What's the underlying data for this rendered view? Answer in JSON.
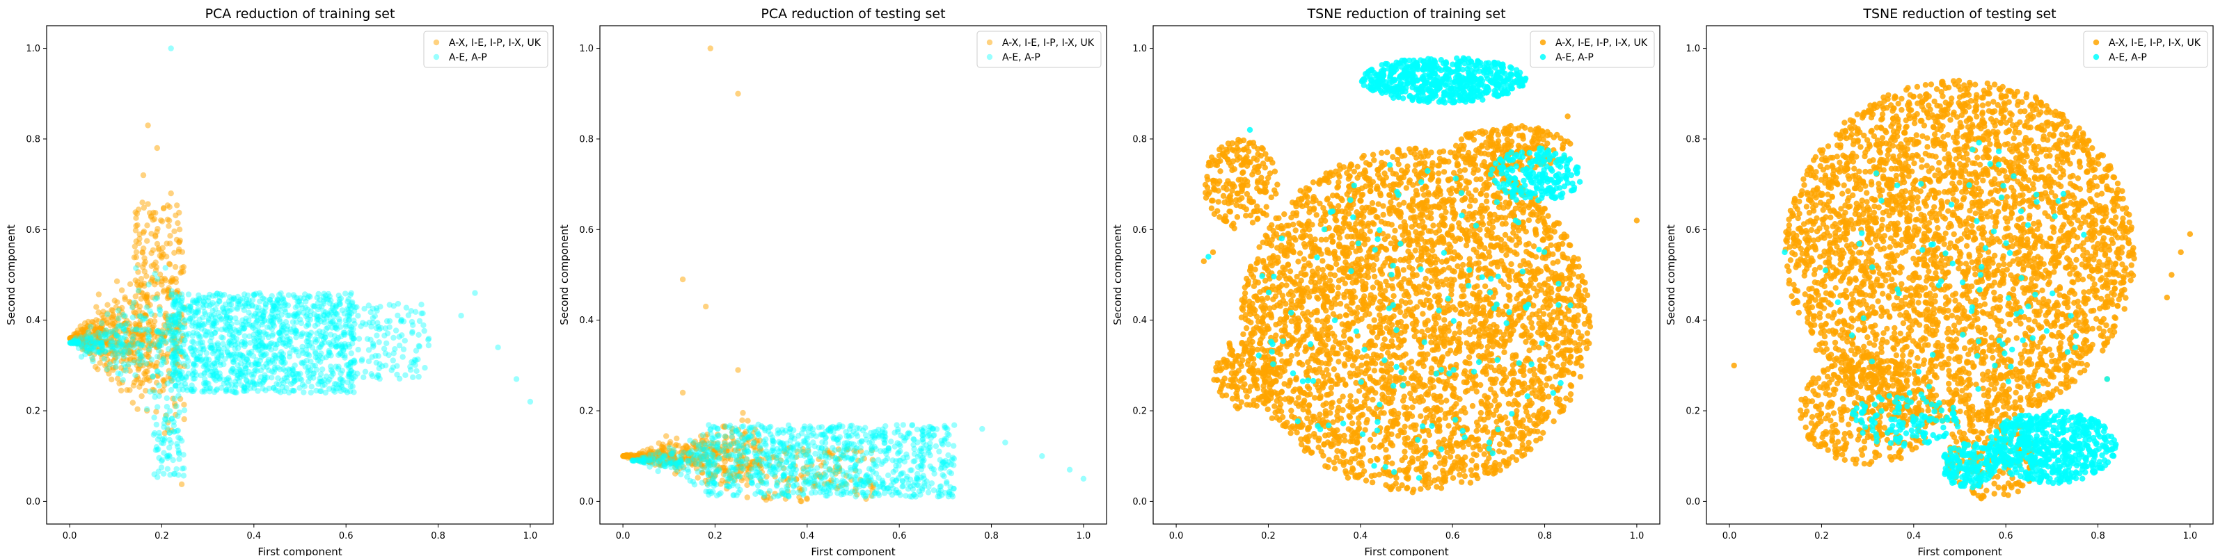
{
  "figure": {
    "colors": {
      "orange": "#ffa500",
      "cyan": "#00ffff"
    },
    "legend_placement": "top-right"
  },
  "chart_data": [
    {
      "type": "scatter",
      "title": "PCA reduction of training set",
      "xlabel": "First component",
      "ylabel": "Second component",
      "xlim": [
        -0.05,
        1.05
      ],
      "ylim": [
        -0.05,
        1.05
      ],
      "xticks": [
        "0.0",
        "0.2",
        "0.4",
        "0.6",
        "0.8",
        "1.0"
      ],
      "yticks": [
        "0.0",
        "0.2",
        "0.4",
        "0.6",
        "0.8",
        "1.0"
      ],
      "grid": false,
      "series": [
        {
          "name": "A-X, I-E, I-P, I-X, UK",
          "color": "#ffa500",
          "alpha": 0.5,
          "blobs": [
            {
              "shape": "tri",
              "x0": 0.0,
              "x1": 0.25,
              "y": 0.36,
              "spreadTop": 0.22,
              "spreadBot": 0.28,
              "n": 600
            },
            {
              "shape": "rect",
              "x": [
                0.14,
                0.24
              ],
              "y": [
                0.45,
                0.66
              ],
              "n": 100
            }
          ],
          "points": [
            [
              0.17,
              0.83
            ],
            [
              0.19,
              0.78
            ],
            [
              0.16,
              0.72
            ],
            [
              0.22,
              0.68
            ]
          ]
        },
        {
          "name": "A-E, A-P",
          "color": "#00ffff",
          "alpha": 0.4,
          "blobs": [
            {
              "shape": "rect",
              "x": [
                0.22,
                0.62
              ],
              "y": [
                0.24,
                0.46
              ],
              "n": 1200
            },
            {
              "shape": "rect",
              "x": [
                0.62,
                0.78
              ],
              "y": [
                0.27,
                0.44
              ],
              "n": 120
            },
            {
              "shape": "tri",
              "x0": 0.0,
              "x1": 0.24,
              "y": 0.35,
              "spreadTop": 0.1,
              "spreadBot": 0.22,
              "n": 300
            },
            {
              "shape": "rect",
              "x": [
                0.18,
                0.25
              ],
              "y": [
                0.05,
                0.24
              ],
              "n": 80
            }
          ],
          "points": [
            [
              0.22,
              1.0
            ],
            [
              0.88,
              0.46
            ],
            [
              0.97,
              0.27
            ],
            [
              1.0,
              0.22
            ],
            [
              0.93,
              0.34
            ],
            [
              0.85,
              0.41
            ]
          ]
        }
      ]
    },
    {
      "type": "scatter",
      "title": "PCA reduction of testing set",
      "xlabel": "First component",
      "ylabel": "Second component",
      "xlim": [
        -0.05,
        1.05
      ],
      "ylim": [
        -0.05,
        1.05
      ],
      "xticks": [
        "0.0",
        "0.2",
        "0.4",
        "0.6",
        "0.8",
        "1.0"
      ],
      "yticks": [
        "0.0",
        "0.2",
        "0.4",
        "0.6",
        "0.8",
        "1.0"
      ],
      "grid": false,
      "series": [
        {
          "name": "A-X, I-E, I-P, I-X, UK",
          "color": "#ffa500",
          "alpha": 0.5,
          "blobs": [
            {
              "shape": "tri",
              "x0": 0.0,
              "x1": 0.3,
              "y": 0.1,
              "spreadTop": 0.08,
              "spreadBot": 0.1,
              "n": 450
            },
            {
              "shape": "rect",
              "x": [
                0.3,
                0.55
              ],
              "y": [
                0.0,
                0.12
              ],
              "n": 120
            }
          ],
          "points": [
            [
              0.19,
              1.0
            ],
            [
              0.25,
              0.9
            ],
            [
              0.13,
              0.49
            ],
            [
              0.18,
              0.43
            ],
            [
              0.25,
              0.29
            ],
            [
              0.13,
              0.24
            ]
          ]
        },
        {
          "name": "A-E, A-P",
          "color": "#00ffff",
          "alpha": 0.4,
          "blobs": [
            {
              "shape": "rect",
              "x": [
                0.18,
                0.72
              ],
              "y": [
                0.01,
                0.17
              ],
              "n": 900
            },
            {
              "shape": "tri",
              "x0": 0.02,
              "x1": 0.2,
              "y": 0.09,
              "spreadTop": 0.04,
              "spreadBot": 0.07,
              "n": 150
            }
          ],
          "points": [
            [
              0.83,
              0.13
            ],
            [
              0.91,
              0.1
            ],
            [
              0.97,
              0.07
            ],
            [
              1.0,
              0.05
            ],
            [
              0.78,
              0.16
            ]
          ]
        }
      ]
    },
    {
      "type": "scatter",
      "title": "TSNE reduction of training set",
      "xlabel": "First component",
      "ylabel": "Second component",
      "xlim": [
        -0.05,
        1.05
      ],
      "ylim": [
        -0.05,
        1.05
      ],
      "xticks": [
        "0.0",
        "0.2",
        "0.4",
        "0.6",
        "0.8",
        "1.0"
      ],
      "yticks": [
        "0.0",
        "0.2",
        "0.4",
        "0.6",
        "0.8",
        "1.0"
      ],
      "grid": false,
      "series": [
        {
          "name": "A-X, I-E, I-P, I-X, UK",
          "color": "#ffa500",
          "alpha": 0.85,
          "blobs": [
            {
              "shape": "ellipse",
              "cx": 0.52,
              "cy": 0.4,
              "rx": 0.38,
              "ry": 0.38,
              "n": 3500
            },
            {
              "shape": "ellipse",
              "cx": 0.14,
              "cy": 0.7,
              "rx": 0.08,
              "ry": 0.1,
              "n": 200
            },
            {
              "shape": "ellipse",
              "cx": 0.15,
              "cy": 0.28,
              "rx": 0.07,
              "ry": 0.08,
              "n": 150
            },
            {
              "shape": "ellipse",
              "cx": 0.73,
              "cy": 0.78,
              "rx": 0.13,
              "ry": 0.05,
              "n": 200
            }
          ],
          "points": [
            [
              0.08,
              0.55
            ],
            [
              0.06,
              0.53
            ],
            [
              1.0,
              0.62
            ],
            [
              0.85,
              0.85
            ]
          ]
        },
        {
          "name": "A-E, A-P",
          "color": "#00ffff",
          "alpha": 0.85,
          "blobs": [
            {
              "shape": "ellipse",
              "cx": 0.58,
              "cy": 0.93,
              "rx": 0.18,
              "ry": 0.05,
              "n": 600
            },
            {
              "shape": "ellipse",
              "cx": 0.78,
              "cy": 0.72,
              "rx": 0.1,
              "ry": 0.06,
              "n": 200
            },
            {
              "shape": "ellipse",
              "cx": 0.52,
              "cy": 0.4,
              "rx": 0.35,
              "ry": 0.35,
              "n": 120
            }
          ],
          "points": [
            [
              0.07,
              0.54
            ],
            [
              0.16,
              0.82
            ]
          ]
        }
      ]
    },
    {
      "type": "scatter",
      "title": "TSNE reduction of testing set",
      "xlabel": "First component",
      "ylabel": "Second component",
      "xlim": [
        -0.05,
        1.05
      ],
      "ylim": [
        -0.05,
        1.05
      ],
      "xticks": [
        "0.0",
        "0.2",
        "0.4",
        "0.6",
        "0.8",
        "1.0"
      ],
      "yticks": [
        "0.0",
        "0.2",
        "0.4",
        "0.6",
        "0.8",
        "1.0"
      ],
      "grid": false,
      "series": [
        {
          "name": "A-X, I-E, I-P, I-X, UK",
          "color": "#ffa500",
          "alpha": 0.85,
          "blobs": [
            {
              "shape": "ellipse",
              "cx": 0.5,
              "cy": 0.55,
              "rx": 0.38,
              "ry": 0.38,
              "n": 3500
            },
            {
              "shape": "ellipse",
              "cx": 0.3,
              "cy": 0.2,
              "rx": 0.15,
              "ry": 0.12,
              "n": 400
            },
            {
              "shape": "ellipse",
              "cx": 0.57,
              "cy": 0.1,
              "rx": 0.1,
              "ry": 0.1,
              "n": 200
            }
          ],
          "points": [
            [
              0.98,
              0.55
            ],
            [
              0.96,
              0.5
            ],
            [
              1.0,
              0.59
            ],
            [
              0.95,
              0.45
            ],
            [
              0.01,
              0.3
            ],
            [
              0.82,
              0.27
            ]
          ]
        },
        {
          "name": "A-E, A-P",
          "color": "#00ffff",
          "alpha": 0.85,
          "blobs": [
            {
              "shape": "ellipse",
              "cx": 0.7,
              "cy": 0.12,
              "rx": 0.14,
              "ry": 0.08,
              "n": 600
            },
            {
              "shape": "ellipse",
              "cx": 0.52,
              "cy": 0.08,
              "rx": 0.06,
              "ry": 0.05,
              "n": 150
            },
            {
              "shape": "ellipse",
              "cx": 0.38,
              "cy": 0.18,
              "rx": 0.12,
              "ry": 0.06,
              "n": 120
            },
            {
              "shape": "ellipse",
              "cx": 0.5,
              "cy": 0.5,
              "rx": 0.3,
              "ry": 0.3,
              "n": 80
            }
          ],
          "points": [
            [
              0.82,
              0.27
            ],
            [
              0.12,
              0.55
            ]
          ]
        }
      ]
    }
  ]
}
